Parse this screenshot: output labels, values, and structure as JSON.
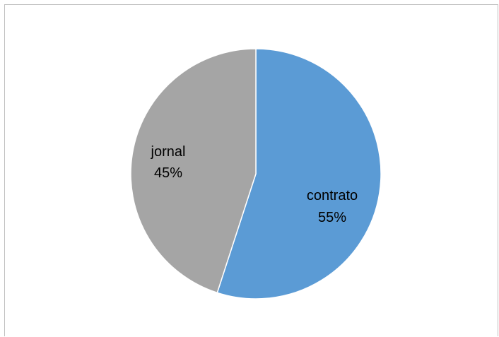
{
  "chart_data": {
    "type": "pie",
    "title": "",
    "slices": [
      {
        "label": "contrato",
        "value": 55,
        "percent_label": "55%",
        "color": "#5b9bd5"
      },
      {
        "label": "jornal",
        "value": 45,
        "percent_label": "45%",
        "color": "#a5a5a5"
      }
    ],
    "legend": "none",
    "labels_inside": true
  }
}
